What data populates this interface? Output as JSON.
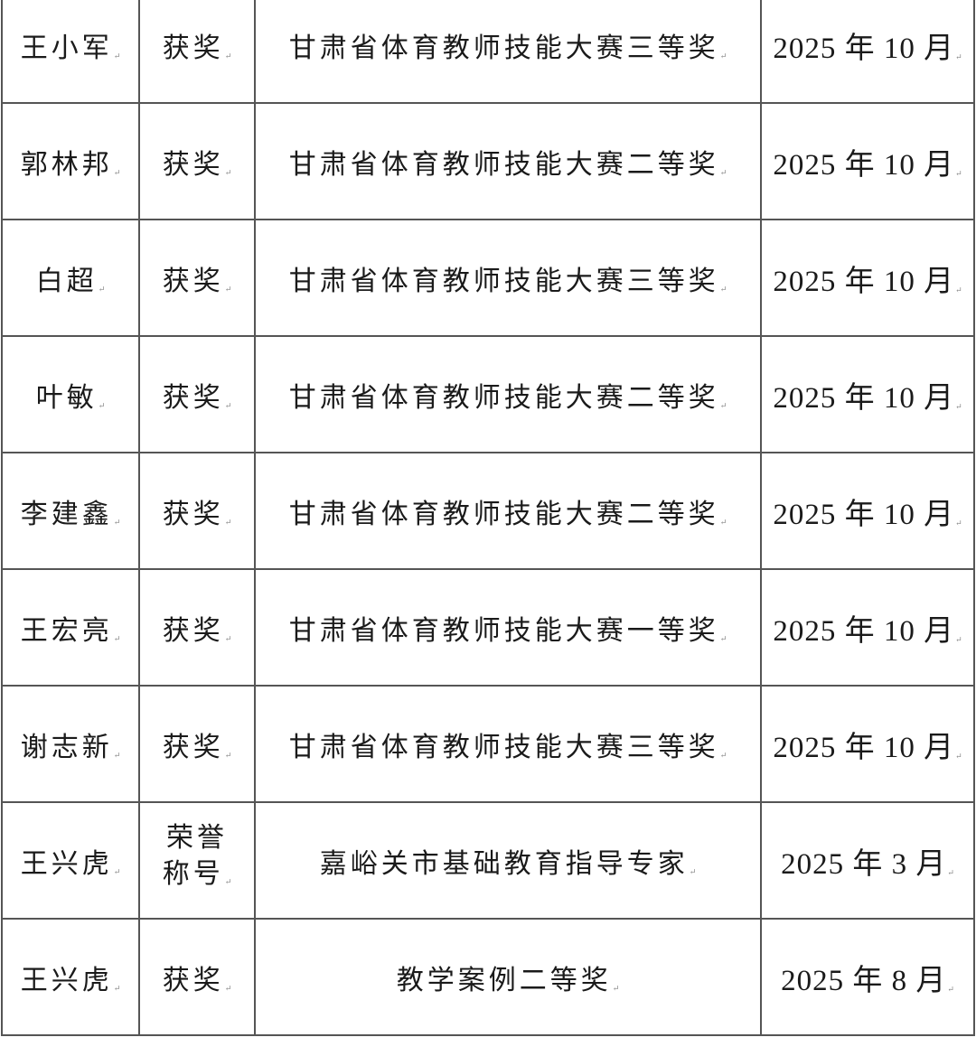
{
  "rows": [
    {
      "name": "王小军",
      "type": "获奖",
      "award": "甘肃省体育教师技能大赛三等奖",
      "date": "2025 年 10 月"
    },
    {
      "name": "郭林邦",
      "type": "获奖",
      "award": "甘肃省体育教师技能大赛二等奖",
      "date": "2025 年 10 月"
    },
    {
      "name": "白超",
      "type": "获奖",
      "award": "甘肃省体育教师技能大赛三等奖",
      "date": "2025 年 10 月"
    },
    {
      "name": "叶敏",
      "type": "获奖",
      "award": "甘肃省体育教师技能大赛二等奖",
      "date": "2025 年 10 月"
    },
    {
      "name": "李建鑫",
      "type": "获奖",
      "award": "甘肃省体育教师技能大赛二等奖",
      "date": "2025 年 10 月"
    },
    {
      "name": "王宏亮",
      "type": "获奖",
      "award": "甘肃省体育教师技能大赛一等奖",
      "date": "2025 年 10 月"
    },
    {
      "name": "谢志新",
      "type": "获奖",
      "award": "甘肃省体育教师技能大赛三等奖",
      "date": "2025 年 10 月"
    },
    {
      "name": "王兴虎",
      "type_line1": "荣誉",
      "type_line2": "称号",
      "award": "嘉峪关市基础教育指导专家",
      "date": "2025 年 3 月"
    },
    {
      "name": "王兴虎",
      "type": "获奖",
      "award": "教学案例二等奖",
      "date": "2025 年 8 月"
    }
  ]
}
